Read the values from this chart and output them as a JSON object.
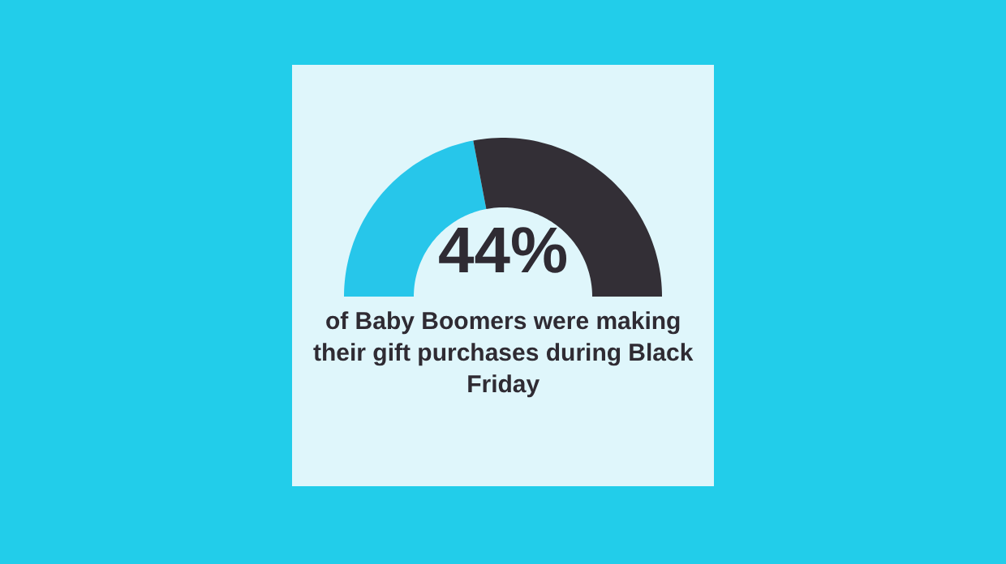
{
  "chart_data": {
    "type": "donut",
    "categories": [
      null,
      null
    ],
    "values": [
      44,
      56
    ],
    "colors": [
      "#27c6ea",
      "#332f36"
    ],
    "annotations": [
      "44%",
      "of Baby Boomers were making\ntheir gift purchases during Black\nFriday"
    ]
  }
}
